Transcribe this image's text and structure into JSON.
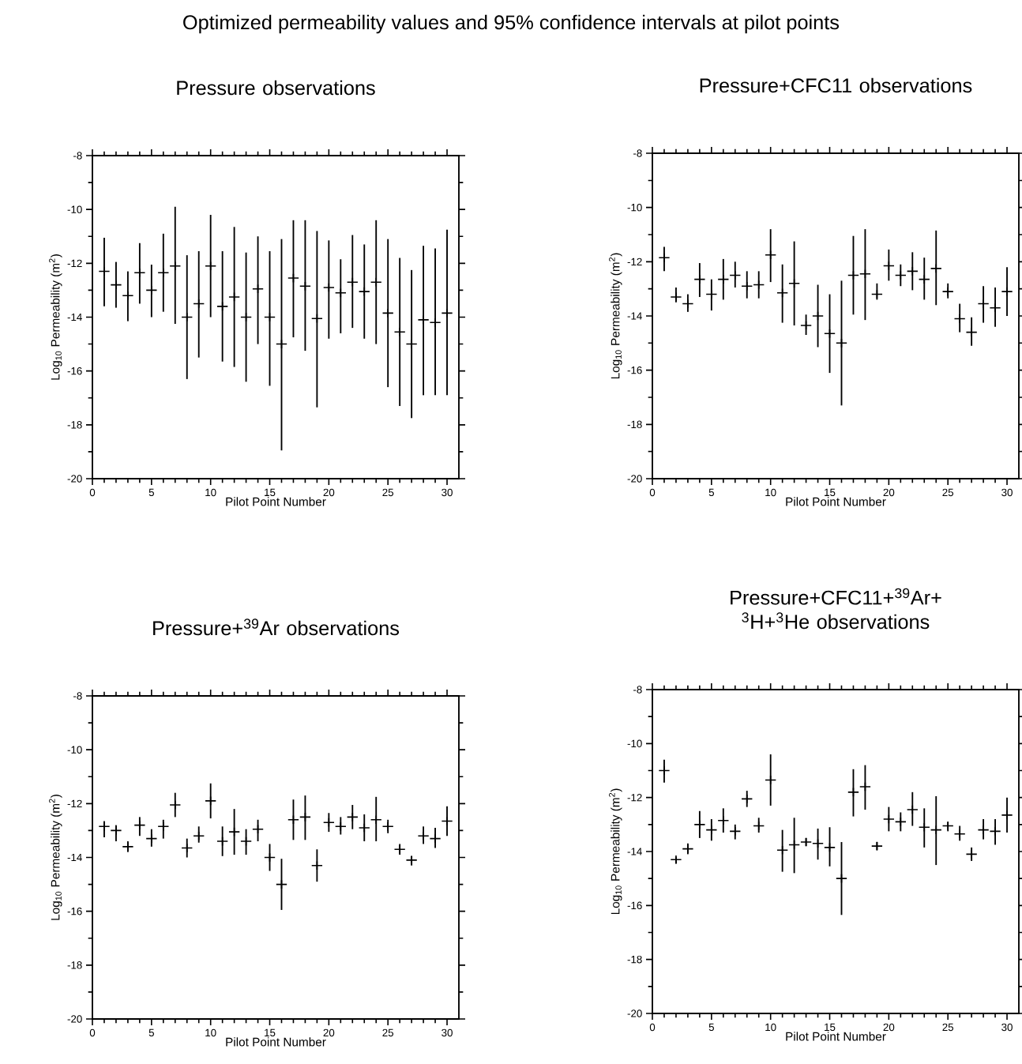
{
  "chart_data": [
    {
      "type": "scatter",
      "title": "Pressure observations",
      "xlabel": "Pilot Point Number",
      "ylabel": "Log$_{10}$ Permeability (m$^{2}$)",
      "annotations": [
        "Optimized permeability values and 95% confidence intervals at pilot points"
      ],
      "xlim": [
        0,
        31
      ],
      "xticks": [
        0,
        5,
        10,
        15,
        20,
        25,
        30
      ],
      "ylim": [
        -20,
        -8
      ],
      "yticks": [
        -20,
        -18,
        -16,
        -14,
        -12,
        -10,
        -8
      ],
      "x": [
        1,
        2,
        3,
        4,
        5,
        6,
        7,
        8,
        9,
        10,
        11,
        12,
        13,
        14,
        15,
        16,
        17,
        18,
        19,
        20,
        21,
        22,
        23,
        24,
        25,
        26,
        27,
        28,
        29,
        30
      ],
      "series": [
        {
          "color": "#000000",
          "values": [
            -12.3,
            -12.8,
            -13.2,
            -12.35,
            -13.0,
            -12.35,
            -12.1,
            -14.0,
            -13.5,
            -12.1,
            -13.6,
            -13.25,
            -14.0,
            -12.95,
            -14.0,
            -15.0,
            -12.55,
            -12.85,
            -14.05,
            -12.9,
            -13.1,
            -12.7,
            -13.05,
            -12.7,
            -13.85,
            -14.55,
            -15.0,
            -14.1,
            -14.2,
            -13.85
          ],
          "errors": [
            [
              -13.6,
              -11.05
            ],
            [
              -13.65,
              -11.95
            ],
            [
              -14.15,
              -12.3
            ],
            [
              -13.5,
              -11.25
            ],
            [
              -14.0,
              -12.05
            ],
            [
              -13.8,
              -10.9
            ],
            [
              -14.25,
              -9.9
            ],
            [
              -16.3,
              -11.7
            ],
            [
              -15.5,
              -11.55
            ],
            [
              -14.0,
              -10.2
            ],
            [
              -15.65,
              -11.55
            ],
            [
              -15.85,
              -10.65
            ],
            [
              -16.4,
              -11.6
            ],
            [
              -15.0,
              -11.0
            ],
            [
              -16.55,
              -11.55
            ],
            [
              -18.95,
              -11.1
            ],
            [
              -14.75,
              -10.4
            ],
            [
              -15.25,
              -10.4
            ],
            [
              -17.35,
              -10.8
            ],
            [
              -14.8,
              -11.15
            ],
            [
              -14.6,
              -11.85
            ],
            [
              -14.4,
              -10.95
            ],
            [
              -14.8,
              -11.3
            ],
            [
              -15.0,
              -10.4
            ],
            [
              -16.6,
              -11.1
            ],
            [
              -17.3,
              -11.8
            ],
            [
              -17.75,
              -12.25
            ],
            [
              -16.9,
              -11.35
            ],
            [
              -16.9,
              -11.45
            ],
            [
              -16.9,
              -10.75
            ]
          ]
        }
      ]
    },
    {
      "type": "scatter",
      "title": "Pressure+CFC11  observations",
      "xlabel": "Pilot Point Number",
      "ylabel": "Log$_{10}$ Permeability (m$^{2}$)",
      "xlim": [
        0,
        31
      ],
      "xticks": [
        0,
        5,
        10,
        15,
        20,
        25,
        30
      ],
      "ylim": [
        -20,
        -8
      ],
      "yticks": [
        -20,
        -18,
        -16,
        -14,
        -12,
        -10,
        -8
      ],
      "x": [
        1,
        2,
        3,
        4,
        5,
        6,
        7,
        8,
        9,
        10,
        11,
        12,
        13,
        14,
        15,
        16,
        17,
        18,
        19,
        20,
        21,
        22,
        23,
        24,
        25,
        26,
        27,
        28,
        29,
        30
      ],
      "series": [
        {
          "color": "#000000",
          "values": [
            -11.85,
            -13.3,
            -13.55,
            -12.65,
            -13.2,
            -12.65,
            -12.5,
            -12.9,
            -12.85,
            -11.75,
            -13.15,
            -12.8,
            -14.35,
            -14.0,
            -14.65,
            -15.0,
            -12.5,
            -12.45,
            -13.2,
            -12.15,
            -12.5,
            -12.35,
            -12.65,
            -12.25,
            -13.1,
            -14.1,
            -14.6,
            -13.55,
            -13.7,
            -13.1
          ],
          "errors": [
            [
              -12.35,
              -11.45
            ],
            [
              -13.5,
              -12.95
            ],
            [
              -13.85,
              -13.2
            ],
            [
              -13.3,
              -12.05
            ],
            [
              -13.8,
              -12.65
            ],
            [
              -13.4,
              -11.9
            ],
            [
              -12.95,
              -12.0
            ],
            [
              -13.35,
              -12.35
            ],
            [
              -13.35,
              -12.35
            ],
            [
              -12.75,
              -10.8
            ],
            [
              -14.25,
              -12.1
            ],
            [
              -14.35,
              -11.25
            ],
            [
              -14.7,
              -13.95
            ],
            [
              -15.15,
              -12.85
            ],
            [
              -16.1,
              -13.2
            ],
            [
              -17.3,
              -12.7
            ],
            [
              -13.95,
              -11.05
            ],
            [
              -14.15,
              -10.8
            ],
            [
              -13.4,
              -12.8
            ],
            [
              -12.7,
              -11.55
            ],
            [
              -12.9,
              -12.1
            ],
            [
              -13.05,
              -11.65
            ],
            [
              -13.4,
              -11.85
            ],
            [
              -13.6,
              -10.85
            ],
            [
              -13.35,
              -12.8
            ],
            [
              -14.6,
              -13.55
            ],
            [
              -15.1,
              -14.05
            ],
            [
              -14.25,
              -12.9
            ],
            [
              -14.4,
              -12.95
            ],
            [
              -14.0,
              -12.2
            ]
          ]
        }
      ]
    },
    {
      "type": "scatter",
      "title": "Pressure+$^{39}$Ar  observations",
      "xlabel": "Pilot Point Number",
      "ylabel": "Log$_{10}$ Permeability (m$^{2}$)",
      "xlim": [
        0,
        31
      ],
      "xticks": [
        0,
        5,
        10,
        15,
        20,
        25,
        30
      ],
      "ylim": [
        -20,
        -8
      ],
      "yticks": [
        -20,
        -18,
        -16,
        -14,
        -12,
        -10,
        -8
      ],
      "x": [
        1,
        2,
        3,
        4,
        5,
        6,
        7,
        8,
        9,
        10,
        11,
        12,
        13,
        14,
        15,
        16,
        17,
        18,
        19,
        20,
        21,
        22,
        23,
        24,
        25,
        26,
        27,
        28,
        29,
        30
      ],
      "series": [
        {
          "color": "#000000",
          "values": [
            -12.85,
            -13.0,
            -13.6,
            -12.8,
            -13.3,
            -12.85,
            -12.05,
            -13.65,
            -13.2,
            -11.9,
            -13.4,
            -13.05,
            -13.4,
            -12.95,
            -14.0,
            -15.0,
            -12.6,
            -12.5,
            -14.3,
            -12.7,
            -12.85,
            -12.5,
            -12.9,
            -12.6,
            -12.85,
            -13.7,
            -14.1,
            -13.2,
            -13.3,
            -12.65
          ],
          "errors": [
            [
              -13.25,
              -12.65
            ],
            [
              -13.4,
              -12.8
            ],
            [
              -13.8,
              -13.4
            ],
            [
              -13.2,
              -12.5
            ],
            [
              -13.6,
              -12.95
            ],
            [
              -13.3,
              -12.6
            ],
            [
              -12.5,
              -11.6
            ],
            [
              -14.0,
              -13.3
            ],
            [
              -13.45,
              -12.85
            ],
            [
              -12.55,
              -11.25
            ],
            [
              -13.95,
              -12.85
            ],
            [
              -13.9,
              -12.2
            ],
            [
              -13.9,
              -12.95
            ],
            [
              -13.4,
              -12.6
            ],
            [
              -14.5,
              -13.5
            ],
            [
              -15.95,
              -14.05
            ],
            [
              -13.35,
              -11.85
            ],
            [
              -13.35,
              -11.7
            ],
            [
              -14.9,
              -13.7
            ],
            [
              -13.05,
              -12.35
            ],
            [
              -13.15,
              -12.5
            ],
            [
              -12.95,
              -12.05
            ],
            [
              -13.4,
              -12.4
            ],
            [
              -13.4,
              -11.75
            ],
            [
              -13.1,
              -12.6
            ],
            [
              -13.9,
              -13.5
            ],
            [
              -14.3,
              -13.95
            ],
            [
              -13.5,
              -12.85
            ],
            [
              -13.65,
              -12.9
            ],
            [
              -13.2,
              -12.1
            ]
          ]
        }
      ]
    },
    {
      "type": "scatter",
      "title": "Pressure+CFC11+$^{39}$Ar+ $^{3}$H+$^{3}$He  observations",
      "xlabel": "Pilot Point Number",
      "ylabel": "Log$_{10}$ Permeability (m$^{2}$)",
      "xlim": [
        0,
        31
      ],
      "xticks": [
        0,
        5,
        10,
        15,
        20,
        25,
        30
      ],
      "ylim": [
        -20,
        -8
      ],
      "yticks": [
        -20,
        -18,
        -16,
        -14,
        -12,
        -10,
        -8
      ],
      "x": [
        1,
        2,
        3,
        4,
        5,
        6,
        7,
        8,
        9,
        10,
        11,
        12,
        13,
        14,
        15,
        16,
        17,
        18,
        19,
        20,
        21,
        22,
        23,
        24,
        25,
        26,
        27,
        28,
        29,
        30
      ],
      "series": [
        {
          "color": "#000000",
          "values": [
            -11.0,
            -14.3,
            -13.9,
            -13.0,
            -13.2,
            -12.85,
            -13.25,
            -12.05,
            -13.05,
            -11.35,
            -13.95,
            -13.75,
            -13.65,
            -13.7,
            -13.85,
            -15.0,
            -11.8,
            -11.6,
            -13.8,
            -12.8,
            -12.9,
            -12.45,
            -13.1,
            -13.2,
            -13.05,
            -13.35,
            -14.1,
            -13.2,
            -13.25,
            -12.65
          ],
          "errors": [
            [
              -11.45,
              -10.6
            ],
            [
              -14.45,
              -14.2
            ],
            [
              -14.1,
              -13.7
            ],
            [
              -13.5,
              -12.5
            ],
            [
              -13.6,
              -12.8
            ],
            [
              -13.3,
              -12.4
            ],
            [
              -13.55,
              -13.0
            ],
            [
              -12.35,
              -11.75
            ],
            [
              -13.3,
              -12.75
            ],
            [
              -12.3,
              -10.4
            ],
            [
              -14.75,
              -13.2
            ],
            [
              -14.8,
              -12.75
            ],
            [
              -13.8,
              -13.5
            ],
            [
              -14.3,
              -13.15
            ],
            [
              -14.55,
              -13.1
            ],
            [
              -16.35,
              -13.65
            ],
            [
              -12.7,
              -10.95
            ],
            [
              -12.45,
              -10.8
            ],
            [
              -13.95,
              -13.65
            ],
            [
              -13.25,
              -12.35
            ],
            [
              -13.25,
              -12.55
            ],
            [
              -13.05,
              -11.8
            ],
            [
              -13.85,
              -12.4
            ],
            [
              -14.5,
              -11.95
            ],
            [
              -13.25,
              -12.9
            ],
            [
              -13.6,
              -13.05
            ],
            [
              -14.35,
              -13.85
            ],
            [
              -13.55,
              -12.8
            ],
            [
              -13.75,
              -12.8
            ],
            [
              -13.3,
              -12.0
            ]
          ]
        }
      ]
    }
  ]
}
